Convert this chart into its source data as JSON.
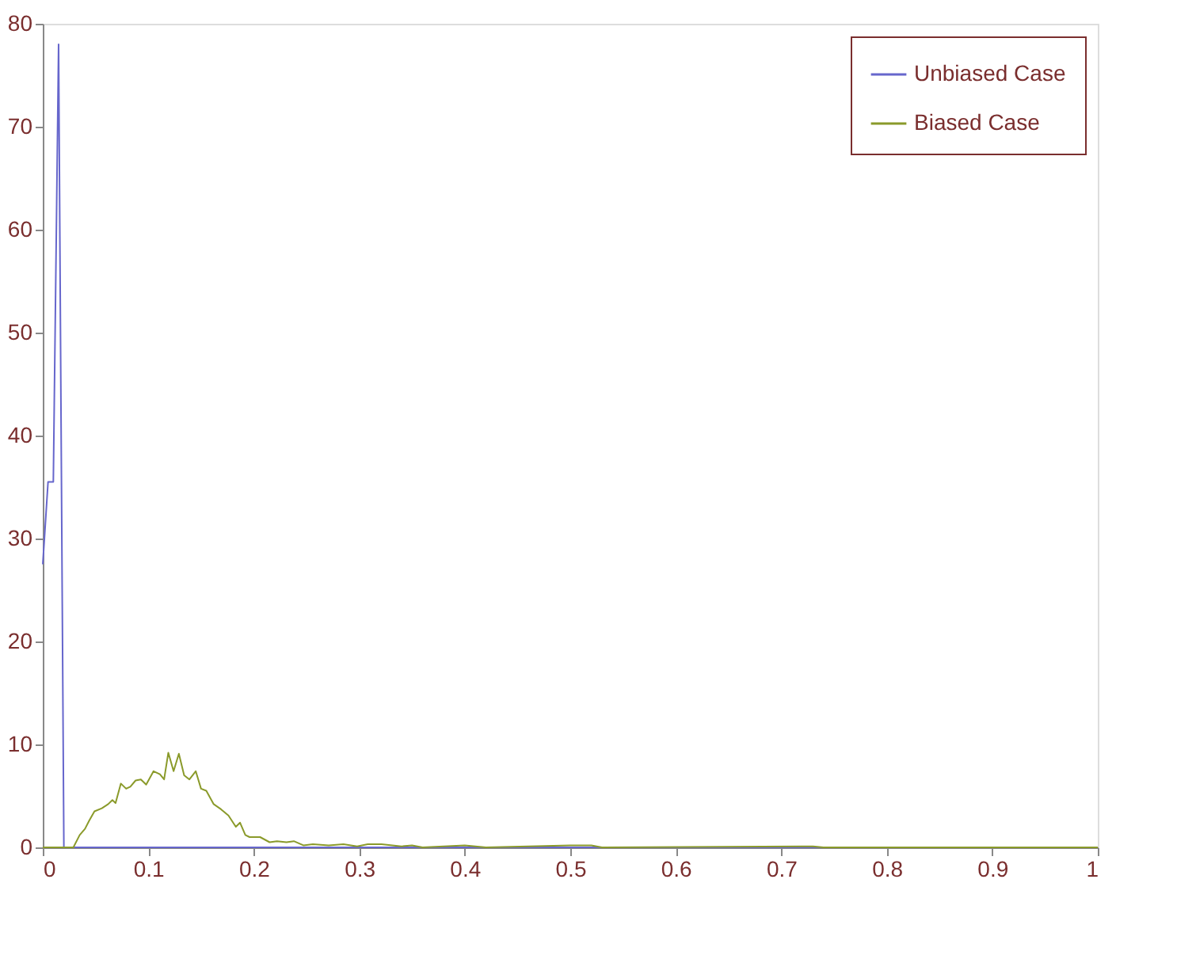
{
  "chart_data": {
    "type": "line",
    "xlim": [
      0,
      1
    ],
    "ylim": [
      0,
      80
    ],
    "xticks": [
      0,
      0.1,
      0.2,
      0.3,
      0.4,
      0.5,
      0.6,
      0.7,
      0.8,
      0.9,
      1
    ],
    "yticks": [
      0,
      10,
      20,
      30,
      40,
      50,
      60,
      70,
      80
    ],
    "grid": false,
    "legend": "top right",
    "marker": "none",
    "line_style": "solid",
    "series": [
      {
        "name": "Unbiased Case",
        "color": "#6666cc",
        "x": [
          0,
          0.005,
          0.01,
          0.015,
          0.02,
          1
        ],
        "values": [
          27.5,
          35.5,
          35.5,
          78,
          0,
          0
        ]
      },
      {
        "name": "Biased Case",
        "color": "#8a9a2a",
        "x": [
          0,
          0.029,
          0.035,
          0.04,
          0.044,
          0.049,
          0.056,
          0.062,
          0.066,
          0.069,
          0.074,
          0.079,
          0.083,
          0.088,
          0.093,
          0.098,
          0.105,
          0.111,
          0.115,
          0.119,
          0.124,
          0.129,
          0.134,
          0.139,
          0.145,
          0.15,
          0.155,
          0.162,
          0.169,
          0.176,
          0.183,
          0.187,
          0.192,
          0.196,
          0.206,
          0.215,
          0.222,
          0.231,
          0.238,
          0.247,
          0.256,
          0.271,
          0.285,
          0.298,
          0.308,
          0.321,
          0.34,
          0.35,
          0.36,
          0.4,
          0.41,
          0.42,
          0.5,
          0.52,
          0.53,
          0.72,
          0.73,
          0.74,
          1
        ],
        "values": [
          0,
          0,
          1.2,
          1.8,
          2.6,
          3.5,
          3.8,
          4.2,
          4.6,
          4.3,
          6.2,
          5.7,
          5.9,
          6.5,
          6.6,
          6.1,
          7.4,
          7.1,
          6.6,
          9.2,
          7.4,
          9.1,
          7.0,
          6.6,
          7.4,
          5.7,
          5.5,
          4.2,
          3.7,
          3.1,
          2.0,
          2.4,
          1.2,
          1.0,
          1.0,
          0.5,
          0.6,
          0.5,
          0.6,
          0.2,
          0.3,
          0.2,
          0.3,
          0.1,
          0.3,
          0.3,
          0.1,
          0.2,
          0,
          0.2,
          0.1,
          0,
          0.2,
          0.2,
          0,
          0.1,
          0.1,
          0,
          0
        ]
      }
    ]
  }
}
